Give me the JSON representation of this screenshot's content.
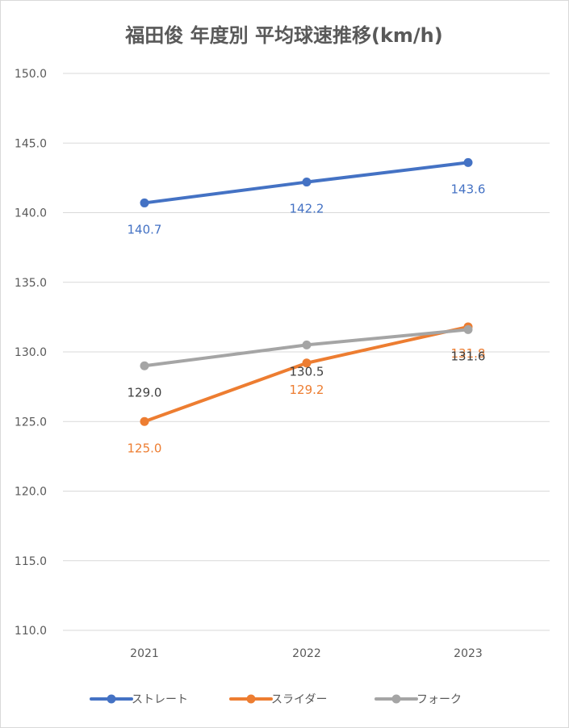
{
  "chart_data": {
    "type": "line",
    "title": "福田俊 年度別 平均球速推移(km/h)",
    "categories": [
      "2021",
      "2022",
      "2023"
    ],
    "ylim": [
      110,
      150
    ],
    "yticks": [
      "110.0",
      "115.0",
      "120.0",
      "125.0",
      "130.0",
      "135.0",
      "140.0",
      "145.0",
      "150.0"
    ],
    "grid": true,
    "legend_position": "bottom",
    "series": [
      {
        "name": "ストレート",
        "color": "#4472c4",
        "values": [
          140.7,
          142.2,
          143.6
        ],
        "labels": [
          "140.7",
          "142.2",
          "143.6"
        ]
      },
      {
        "name": "スライダー",
        "color": "#ed7d31",
        "values": [
          125.0,
          129.2,
          131.8
        ],
        "labels": [
          "125.0",
          "129.2",
          "131.8"
        ]
      },
      {
        "name": "フォーク",
        "color": "#a5a5a5",
        "values": [
          129.0,
          130.5,
          131.6
        ],
        "labels": [
          "129.0",
          "130.5",
          "131.6"
        ]
      }
    ]
  }
}
